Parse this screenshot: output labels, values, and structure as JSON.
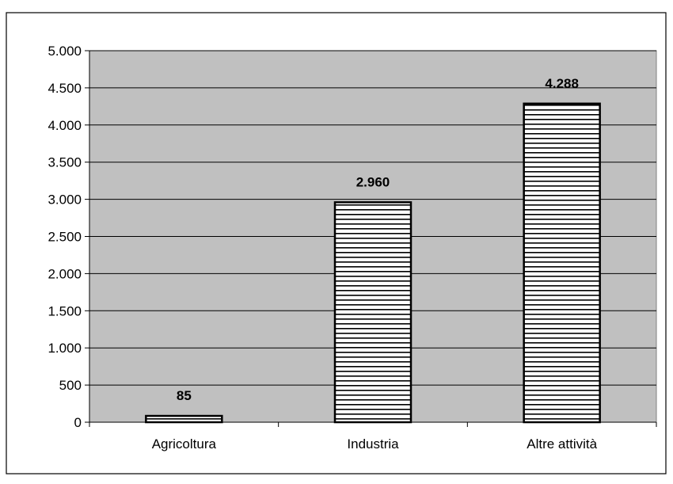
{
  "chart_data": {
    "type": "bar",
    "title": "",
    "xlabel": "",
    "ylabel": "",
    "categories": [
      "Agricoltura",
      "Industria",
      "Altre attività"
    ],
    "values": [
      85,
      2960,
      4288
    ],
    "value_labels": [
      "85",
      "2.960",
      "4.288"
    ],
    "ylim": [
      0,
      5000
    ],
    "yticks": [
      0,
      500,
      1000,
      1500,
      2000,
      2500,
      3000,
      3500,
      4000,
      4500,
      5000
    ],
    "ytick_labels": [
      "0",
      "500",
      "1.000",
      "1.500",
      "2.000",
      "2.500",
      "3.000",
      "3.500",
      "4.000",
      "4.500",
      "5.000"
    ],
    "grid": true,
    "legend": "none",
    "bar_fill": "horizontal-stripes",
    "colors": {
      "plot_background": "#c0c0c0",
      "bar_background": "#ffffff",
      "bar_stripes": "#000000",
      "gridlines": "#000000",
      "outer_border": "#000000"
    }
  }
}
